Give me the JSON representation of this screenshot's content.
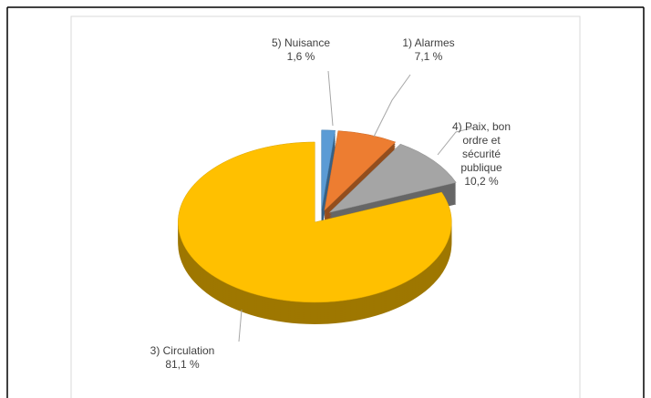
{
  "chart_data": {
    "type": "pie",
    "categories": [
      "5) Nuisance",
      "1) Alarmes",
      "4) Paix, bon ordre et sécurité publique",
      "3) Circulation"
    ],
    "values": [
      1.6,
      7.1,
      10.2,
      81.1
    ],
    "value_labels": [
      "1,6 %",
      "7,1 %",
      "10,2 %",
      "81,1 %"
    ],
    "colors": [
      "#5b9bd5",
      "#ed7d31",
      "#a5a5a5",
      "#ffc000"
    ]
  }
}
